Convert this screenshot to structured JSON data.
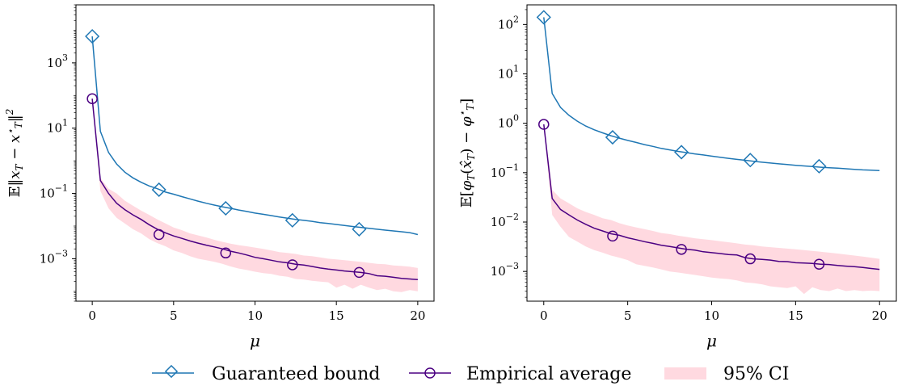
{
  "chart_data": [
    {
      "type": "line",
      "ylabel": "E||x_T − x*_T||²",
      "ylabel_parts": {
        "lead": "𝔼‖",
        "x": "x",
        "sub": "T",
        "minus": " − ",
        "x2": "x",
        "sup2": "⋆",
        "sub2": "T",
        "close": "‖",
        "sq": "2"
      },
      "xlabel": "μ",
      "yscale": "log",
      "xlim": [
        -1,
        21
      ],
      "ylim": [
        5e-05,
        60000
      ],
      "xticks": [
        0,
        5,
        10,
        15,
        20
      ],
      "xtick_labels": [
        "0",
        "5",
        "10",
        "15",
        "20"
      ],
      "yticks": [
        0.001,
        0.1,
        10,
        1000
      ],
      "ytick_labels": [
        [
          "10",
          "−3"
        ],
        [
          "10",
          "−1"
        ],
        [
          "10",
          "1"
        ],
        [
          "10",
          "3"
        ]
      ],
      "grid": false,
      "x": [
        0,
        0.5,
        1,
        1.5,
        2,
        2.5,
        3,
        3.5,
        4,
        4.5,
        5,
        5.5,
        6,
        6.5,
        7,
        7.5,
        8,
        8.5,
        9,
        9.5,
        10,
        10.5,
        11,
        11.5,
        12,
        12.5,
        13,
        13.5,
        14,
        14.5,
        15,
        15.5,
        16,
        16.5,
        17,
        17.5,
        18,
        18.5,
        19,
        19.5,
        20
      ],
      "series": [
        {
          "name": "Guaranteed bound",
          "color": "#1f77b4",
          "marker": "diamond",
          "marker_x": [
            0,
            4.1,
            8.2,
            12.3,
            16.4
          ],
          "marker_y": [
            6500,
            0.13,
            0.035,
            0.015,
            0.008
          ],
          "values": [
            6500,
            8,
            1.8,
            0.8,
            0.45,
            0.3,
            0.22,
            0.17,
            0.14,
            0.11,
            0.095,
            0.08,
            0.068,
            0.058,
            0.05,
            0.044,
            0.039,
            0.035,
            0.031,
            0.028,
            0.025,
            0.023,
            0.021,
            0.019,
            0.0175,
            0.016,
            0.015,
            0.014,
            0.0128,
            0.012,
            0.0112,
            0.0104,
            0.0097,
            0.0091,
            0.0085,
            0.008,
            0.0075,
            0.0071,
            0.0067,
            0.0063,
            0.0055
          ]
        },
        {
          "name": "Empirical average",
          "color": "#4b0082",
          "marker": "circle",
          "marker_x": [
            0,
            4.1,
            8.2,
            12.3,
            16.4
          ],
          "marker_y": [
            80,
            0.0055,
            0.0015,
            0.00065,
            0.00038
          ],
          "values": [
            80,
            0.25,
            0.1,
            0.05,
            0.032,
            0.022,
            0.016,
            0.011,
            0.008,
            0.0062,
            0.005,
            0.0042,
            0.0035,
            0.003,
            0.0026,
            0.0023,
            0.002,
            0.0017,
            0.0015,
            0.0013,
            0.0011,
            0.001,
            0.0009,
            0.0008,
            0.00075,
            0.00068,
            0.00064,
            0.00058,
            0.00052,
            0.00048,
            0.00045,
            0.00042,
            0.0004,
            0.00038,
            0.00035,
            0.0003,
            0.00029,
            0.00027,
            0.00025,
            0.00024,
            0.00023
          ]
        }
      ],
      "ci": {
        "name": "95% CI",
        "color": "#ffc0cb",
        "lower": [
          70,
          0.12,
          0.035,
          0.018,
          0.012,
          0.008,
          0.006,
          0.004,
          0.003,
          0.0024,
          0.0018,
          0.0015,
          0.0012,
          0.001,
          0.0009,
          0.0008,
          0.0007,
          0.00058,
          0.0005,
          0.00045,
          0.0004,
          0.00036,
          0.00034,
          0.0003,
          0.00028,
          0.00024,
          0.00023,
          0.00021,
          0.0002,
          0.00019,
          0.00013,
          0.00016,
          0.00012,
          0.00016,
          0.00013,
          0.00011,
          0.00012,
          0.0001,
          9.5e-05,
          0.00011,
          0.0001
        ],
        "upper": [
          95,
          0.3,
          0.14,
          0.1,
          0.06,
          0.042,
          0.03,
          0.022,
          0.016,
          0.012,
          0.009,
          0.0075,
          0.006,
          0.0052,
          0.0045,
          0.0038,
          0.0033,
          0.0029,
          0.0026,
          0.0024,
          0.0022,
          0.002,
          0.0018,
          0.0016,
          0.0015,
          0.0014,
          0.00125,
          0.0012,
          0.0011,
          0.001,
          0.00095,
          0.0009,
          0.00085,
          0.0008,
          0.00075,
          0.0007,
          0.00068,
          0.00062,
          0.0006,
          0.00057,
          0.00052
        ]
      }
    },
    {
      "type": "line",
      "ylabel": "E[φ_T(x̂_T) − φ*_T]",
      "ylabel_parts": {
        "lead": "𝔼[",
        "phi": "φ",
        "sub": "T",
        "open": "(",
        "xhat": "x̂",
        "sub2": "T",
        "close": ") − ",
        "phi2": "φ",
        "sup3": "⋆",
        "sub3": "T",
        "end": "]"
      },
      "xlabel": "μ",
      "yscale": "log",
      "xlim": [
        -1,
        21
      ],
      "ylim": [
        0.00025,
        250
      ],
      "xticks": [
        0,
        5,
        10,
        15,
        20
      ],
      "xtick_labels": [
        "0",
        "5",
        "10",
        "15",
        "20"
      ],
      "yticks": [
        0.001,
        0.01,
        0.1,
        1,
        10,
        100
      ],
      "ytick_labels": [
        [
          "10",
          "−3"
        ],
        [
          "10",
          "−2"
        ],
        [
          "10",
          "−1"
        ],
        [
          "10",
          "0"
        ],
        [
          "10",
          "1"
        ],
        [
          "10",
          "2"
        ]
      ],
      "grid": false,
      "x": [
        0,
        0.5,
        1,
        1.5,
        2,
        2.5,
        3,
        3.5,
        4,
        4.5,
        5,
        5.5,
        6,
        6.5,
        7,
        7.5,
        8,
        8.5,
        9,
        9.5,
        10,
        10.5,
        11,
        11.5,
        12,
        12.5,
        13,
        13.5,
        14,
        14.5,
        15,
        15.5,
        16,
        16.5,
        17,
        17.5,
        18,
        18.5,
        19,
        19.5,
        20
      ],
      "series": [
        {
          "name": "Guaranteed bound",
          "color": "#1f77b4",
          "marker": "diamond",
          "marker_x": [
            0,
            4.1,
            8.2,
            12.3,
            16.4
          ],
          "marker_y": [
            140,
            0.52,
            0.26,
            0.18,
            0.135
          ],
          "values": [
            140,
            4,
            2.1,
            1.45,
            1.1,
            0.88,
            0.74,
            0.64,
            0.56,
            0.5,
            0.45,
            0.41,
            0.37,
            0.34,
            0.31,
            0.29,
            0.27,
            0.255,
            0.24,
            0.228,
            0.216,
            0.205,
            0.195,
            0.186,
            0.178,
            0.17,
            0.163,
            0.157,
            0.151,
            0.146,
            0.141,
            0.137,
            0.133,
            0.129,
            0.126,
            0.123,
            0.12,
            0.117,
            0.114,
            0.112,
            0.11
          ]
        },
        {
          "name": "Empirical average",
          "color": "#4b0082",
          "marker": "circle",
          "marker_x": [
            0,
            4.1,
            8.2,
            12.3,
            16.4
          ],
          "marker_y": [
            0.95,
            0.0052,
            0.0028,
            0.0018,
            0.0014
          ],
          "values": [
            0.95,
            0.03,
            0.018,
            0.014,
            0.011,
            0.009,
            0.0075,
            0.0066,
            0.0058,
            0.0054,
            0.0048,
            0.0044,
            0.004,
            0.0037,
            0.0034,
            0.0032,
            0.003,
            0.0028,
            0.0027,
            0.0025,
            0.0024,
            0.0023,
            0.0022,
            0.00215,
            0.0019,
            0.0018,
            0.00175,
            0.0017,
            0.0016,
            0.00158,
            0.0015,
            0.00148,
            0.00145,
            0.0014,
            0.00138,
            0.00132,
            0.00128,
            0.00125,
            0.0012,
            0.00115,
            0.0011
          ]
        }
      ],
      "ci": {
        "name": "95% CI",
        "color": "#ffc0cb",
        "lower": [
          0.9,
          0.014,
          0.008,
          0.005,
          0.004,
          0.0032,
          0.0027,
          0.0024,
          0.0021,
          0.0019,
          0.0017,
          0.0014,
          0.0013,
          0.0012,
          0.0011,
          0.001,
          0.00095,
          0.0009,
          0.00085,
          0.0008,
          0.00075,
          0.00072,
          0.0007,
          0.00066,
          0.0006,
          0.00058,
          0.00055,
          0.0005,
          0.00048,
          0.00046,
          0.0005,
          0.00035,
          0.00048,
          0.00042,
          0.0004,
          0.00045,
          0.0004,
          0.00042,
          0.0004,
          0.00041,
          0.0004
        ],
        "upper": [
          1.0,
          0.045,
          0.03,
          0.024,
          0.019,
          0.016,
          0.014,
          0.012,
          0.011,
          0.0095,
          0.0085,
          0.0078,
          0.0072,
          0.0066,
          0.006,
          0.0057,
          0.0053,
          0.005,
          0.0047,
          0.0045,
          0.0043,
          0.0041,
          0.0039,
          0.0037,
          0.0035,
          0.0034,
          0.0032,
          0.0031,
          0.003,
          0.0029,
          0.0028,
          0.0027,
          0.0026,
          0.0025,
          0.0024,
          0.0023,
          0.0022,
          0.0021,
          0.002,
          0.0019,
          0.0018
        ]
      }
    }
  ],
  "legend": {
    "placement": "bottom-center",
    "items": [
      {
        "label": "Guaranteed bound",
        "kind": "line-diamond",
        "color": "#1f77b4"
      },
      {
        "label": "Empirical average",
        "kind": "line-circle",
        "color": "#4b0082"
      },
      {
        "label": "95% CI",
        "kind": "patch",
        "color": "#ffc0cb"
      }
    ]
  }
}
